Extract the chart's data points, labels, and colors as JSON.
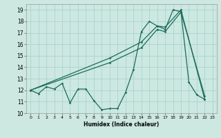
{
  "xlabel": "Humidex (Indice chaleur)",
  "xlim": [
    -0.5,
    23.5
  ],
  "ylim": [
    10,
    19.5
  ],
  "xticks": [
    0,
    1,
    2,
    3,
    4,
    5,
    6,
    7,
    8,
    9,
    10,
    11,
    12,
    13,
    14,
    15,
    16,
    17,
    18,
    19,
    20,
    21,
    22,
    23
  ],
  "yticks": [
    10,
    11,
    12,
    13,
    14,
    15,
    16,
    17,
    18,
    19
  ],
  "background_color": "#cce8e0",
  "grid_color": "#aad4cc",
  "line_color": "#1a6b5a",
  "line1_x": [
    0,
    1,
    2,
    3,
    4,
    5,
    6,
    7,
    8,
    9,
    10,
    11,
    12,
    13,
    14,
    15,
    16,
    17,
    18,
    19,
    20,
    21,
    22
  ],
  "line1_y": [
    12.0,
    11.7,
    12.3,
    12.1,
    12.6,
    10.9,
    12.1,
    12.1,
    11.1,
    10.3,
    10.4,
    10.4,
    11.8,
    13.8,
    17.1,
    18.0,
    17.6,
    17.3,
    19.0,
    18.85,
    12.7,
    11.6,
    11.2
  ],
  "line2_x": [
    0,
    10,
    14,
    16,
    17,
    19,
    22
  ],
  "line2_y": [
    12.0,
    14.8,
    16.2,
    17.6,
    17.5,
    19.0,
    11.2
  ],
  "line3_x": [
    0,
    10,
    14,
    16,
    17,
    19,
    22
  ],
  "line3_y": [
    12.0,
    14.4,
    15.7,
    17.3,
    17.1,
    18.8,
    11.5
  ]
}
